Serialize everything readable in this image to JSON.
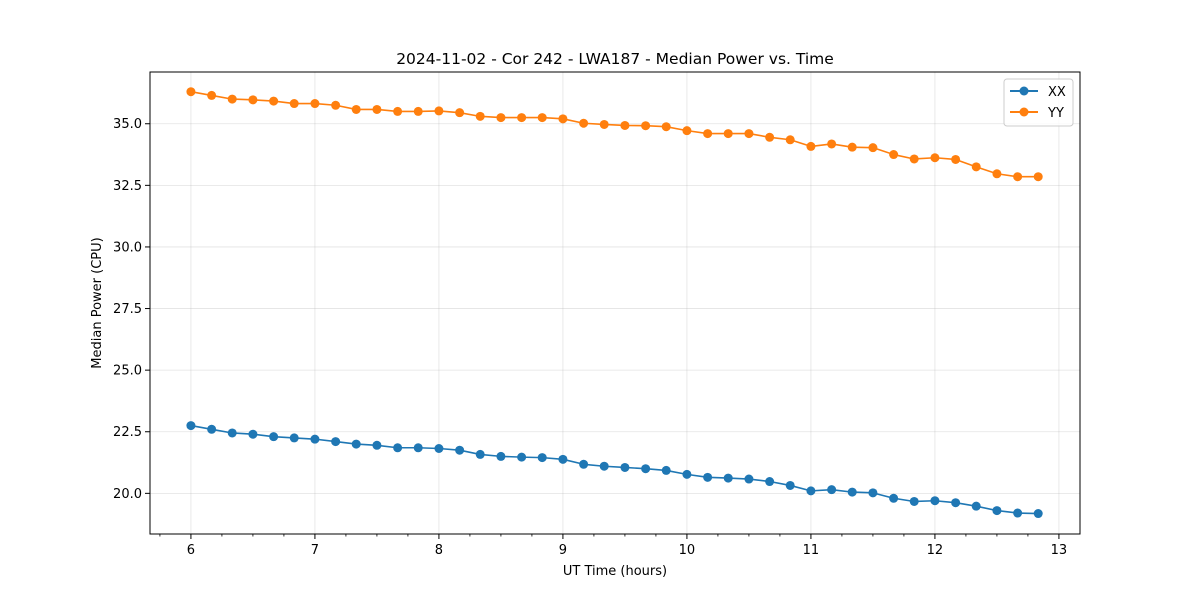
{
  "chart_data": {
    "type": "line",
    "title": "2024-11-02 - Cor 242 - LWA187 - Median Power vs. Time",
    "xlabel": "UT Time (hours)",
    "ylabel": "Median Power (CPU)",
    "xlim": [
      5.67,
      13.17
    ],
    "ylim": [
      18.35,
      37.1
    ],
    "xticks": [
      6,
      7,
      8,
      9,
      10,
      11,
      12,
      13
    ],
    "xtick_labels": [
      "6",
      "7",
      "8",
      "9",
      "10",
      "11",
      "12",
      "13"
    ],
    "x_minor_step": 0.25,
    "yticks": [
      20.0,
      22.5,
      25.0,
      27.5,
      30.0,
      32.5,
      35.0
    ],
    "ytick_labels": [
      "20.0",
      "22.5",
      "25.0",
      "27.5",
      "30.0",
      "32.5",
      "35.0"
    ],
    "grid": true,
    "legend_position": "top-right",
    "x": [
      6.0,
      6.167,
      6.333,
      6.5,
      6.667,
      6.833,
      7.0,
      7.167,
      7.333,
      7.5,
      7.667,
      7.833,
      8.0,
      8.167,
      8.333,
      8.5,
      8.667,
      8.833,
      9.0,
      9.167,
      9.333,
      9.5,
      9.667,
      9.833,
      10.0,
      10.167,
      10.333,
      10.5,
      10.667,
      10.833,
      11.0,
      11.167,
      11.333,
      11.5,
      11.667,
      11.833,
      12.0,
      12.167,
      12.333,
      12.5,
      12.667,
      12.833
    ],
    "series": [
      {
        "name": "XX",
        "color": "#1f77b4",
        "values": [
          22.75,
          22.6,
          22.45,
          22.4,
          22.3,
          22.25,
          22.2,
          22.1,
          22.0,
          21.95,
          21.85,
          21.85,
          21.82,
          21.75,
          21.58,
          21.5,
          21.47,
          21.45,
          21.38,
          21.18,
          21.1,
          21.05,
          21.0,
          20.93,
          20.77,
          20.65,
          20.62,
          20.58,
          20.48,
          20.32,
          20.1,
          20.15,
          20.05,
          20.02,
          19.8,
          19.67,
          19.7,
          19.62,
          19.48,
          19.3,
          19.2,
          19.18
        ]
      },
      {
        "name": "YY",
        "color": "#ff7f0e",
        "values": [
          36.3,
          36.15,
          36.0,
          35.97,
          35.92,
          35.82,
          35.82,
          35.75,
          35.58,
          35.58,
          35.5,
          35.5,
          35.52,
          35.45,
          35.3,
          35.25,
          35.25,
          35.25,
          35.2,
          35.02,
          34.97,
          34.93,
          34.92,
          34.88,
          34.72,
          34.6,
          34.6,
          34.6,
          34.45,
          34.35,
          34.08,
          34.18,
          34.05,
          34.03,
          33.75,
          33.57,
          33.62,
          33.55,
          33.25,
          32.97,
          32.85,
          32.85
        ]
      }
    ]
  }
}
